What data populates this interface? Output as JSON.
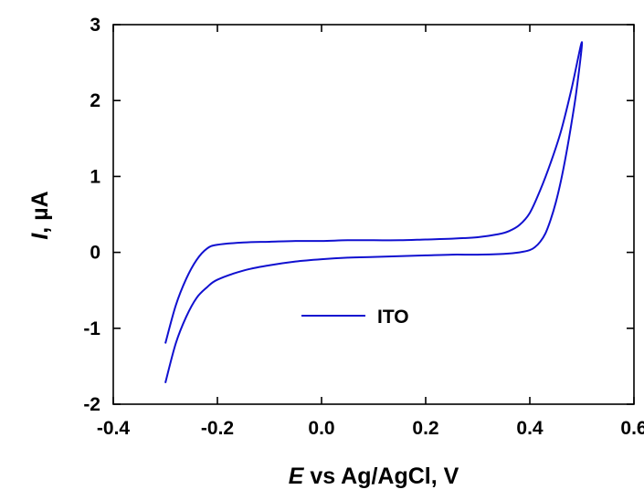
{
  "chart_data": {
    "type": "line",
    "title": "",
    "xlabel_var": "E",
    "xlabel_rest": " vs Ag/AgCl,  V",
    "ylabel_var": "I",
    "ylabel_rest": ",  µA",
    "xlim": [
      -0.4,
      0.6
    ],
    "ylim": [
      -2,
      3
    ],
    "xticks": [
      -0.4,
      -0.2,
      0.0,
      0.2,
      0.4,
      0.6
    ],
    "xtick_labels": [
      "-0.4",
      "-0.2",
      "0.0",
      "0.2",
      "0.4",
      "0.6"
    ],
    "yticks": [
      -2,
      -1,
      0,
      1,
      2,
      3
    ],
    "ytick_labels": [
      "-2",
      "-1",
      "0",
      "1",
      "2",
      "3"
    ],
    "grid": false,
    "legend_position": "lower-center",
    "colors": {
      "series": "#1010d0",
      "axes": "#000000"
    },
    "series": [
      {
        "name": "ITO",
        "x": [
          -0.3,
          -0.28,
          -0.26,
          -0.24,
          -0.22,
          -0.2,
          -0.15,
          -0.1,
          -0.05,
          0.0,
          0.05,
          0.1,
          0.15,
          0.2,
          0.25,
          0.3,
          0.34,
          0.36,
          0.38,
          0.4,
          0.42,
          0.44,
          0.46,
          0.48,
          0.5,
          0.49,
          0.48,
          0.47,
          0.46,
          0.45,
          0.44,
          0.43,
          0.42,
          0.41,
          0.4,
          0.38,
          0.35,
          0.3,
          0.25,
          0.2,
          0.15,
          0.1,
          0.05,
          0.0,
          -0.05,
          -0.1,
          -0.15,
          -0.2,
          -0.22,
          -0.24,
          -0.26,
          -0.28,
          -0.3
        ],
        "y": [
          -1.2,
          -0.7,
          -0.35,
          -0.1,
          0.05,
          0.1,
          0.13,
          0.14,
          0.15,
          0.15,
          0.16,
          0.16,
          0.16,
          0.17,
          0.18,
          0.2,
          0.24,
          0.28,
          0.36,
          0.52,
          0.82,
          1.18,
          1.6,
          2.15,
          2.77,
          2.15,
          1.7,
          1.3,
          0.95,
          0.66,
          0.43,
          0.25,
          0.14,
          0.07,
          0.03,
          0.0,
          -0.02,
          -0.03,
          -0.03,
          -0.04,
          -0.05,
          -0.06,
          -0.07,
          -0.09,
          -0.12,
          -0.17,
          -0.24,
          -0.36,
          -0.46,
          -0.6,
          -0.85,
          -1.2,
          -1.72
        ]
      }
    ]
  }
}
